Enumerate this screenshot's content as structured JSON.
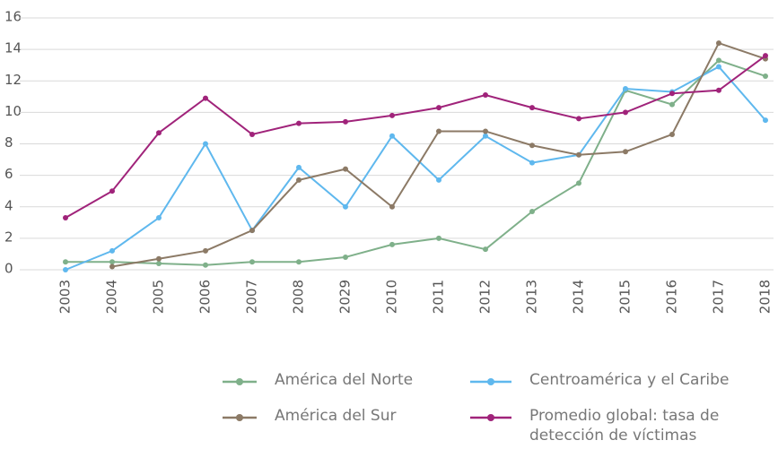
{
  "chart_data": {
    "type": "line",
    "categories": [
      "2003",
      "2004",
      "2005",
      "2006",
      "2007",
      "2008",
      "2029",
      "2010",
      "2011",
      "2012",
      "2013",
      "2014",
      "2015",
      "2016",
      "2017",
      "2018"
    ],
    "series": [
      {
        "name": "América del Norte",
        "color": "#7fb08a",
        "values": [
          0.5,
          0.5,
          0.4,
          0.3,
          0.5,
          0.5,
          0.8,
          1.6,
          2.0,
          1.3,
          3.7,
          5.5,
          11.4,
          10.5,
          13.3,
          12.3
        ]
      },
      {
        "name": "Centroamérica y el Caribe",
        "color": "#5fb8ee",
        "values": [
          0,
          1.2,
          3.3,
          8.0,
          2.5,
          6.5,
          4.0,
          8.5,
          5.7,
          8.5,
          6.8,
          7.3,
          11.5,
          11.3,
          12.9,
          9.5
        ]
      },
      {
        "name": "América del Sur",
        "color": "#8c7a66",
        "values": [
          null,
          0.2,
          0.7,
          1.2,
          2.5,
          5.7,
          6.4,
          4.0,
          8.8,
          8.8,
          7.9,
          7.3,
          7.5,
          8.6,
          14.4,
          13.4
        ]
      },
      {
        "name": "Promedio global: tasa de detección de víctimas",
        "color": "#a0237a",
        "values": [
          3.3,
          5.0,
          8.7,
          10.9,
          8.6,
          9.3,
          9.4,
          9.8,
          10.3,
          11.1,
          10.3,
          9.6,
          10.0,
          11.2,
          11.4,
          13.6
        ]
      }
    ],
    "ylim": [
      0,
      16
    ],
    "yticks": [
      0,
      2,
      4,
      6,
      8,
      10,
      12,
      14,
      16
    ],
    "grid": true
  }
}
